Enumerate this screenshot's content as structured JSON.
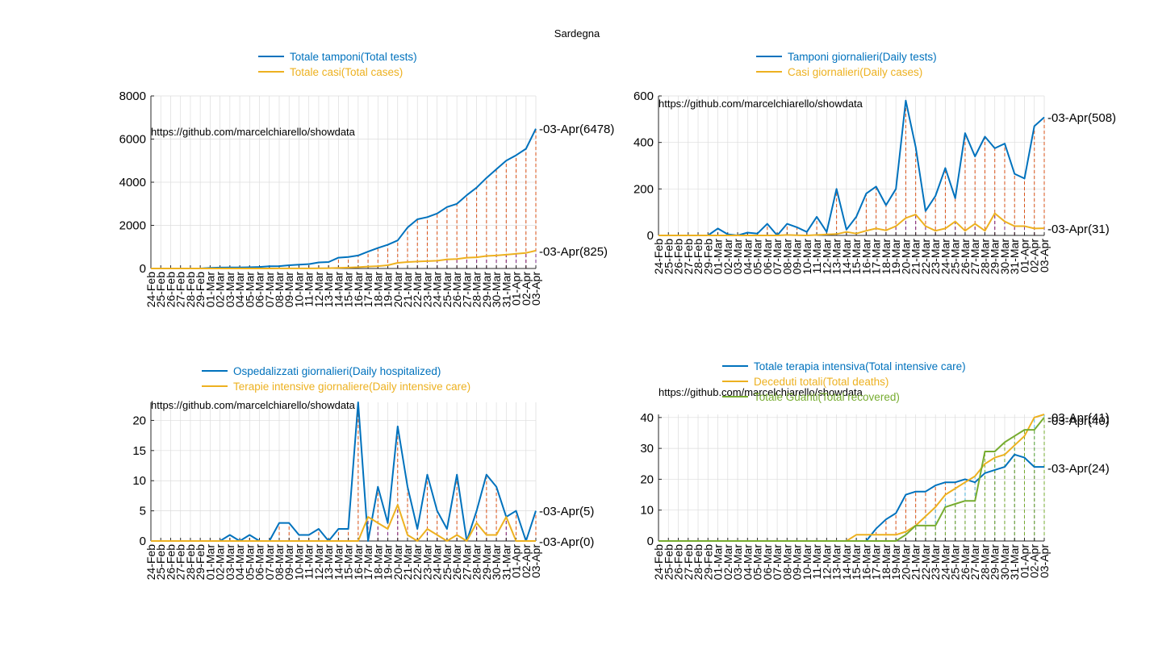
{
  "page": {
    "title": "Sardegna"
  },
  "colors": {
    "blue": "#0072BD",
    "orange": "#EDB120",
    "green": "#77AC30",
    "red": "#D95319",
    "purple": "#7E2F8E",
    "cyan": "#4DBEEE",
    "grid": "#dcdcdc",
    "axis": "#262626"
  },
  "chart_data": [
    {
      "type": "line",
      "categories": [
        "24-Feb",
        "25-Feb",
        "26-Feb",
        "27-Feb",
        "28-Feb",
        "29-Feb",
        "01-Mar",
        "02-Mar",
        "03-Mar",
        "04-Mar",
        "05-Mar",
        "06-Mar",
        "07-Mar",
        "08-Mar",
        "09-Mar",
        "10-Mar",
        "11-Mar",
        "12-Mar",
        "13-Mar",
        "14-Mar",
        "15-Mar",
        "16-Mar",
        "17-Mar",
        "18-Mar",
        "19-Mar",
        "20-Mar",
        "21-Mar",
        "22-Mar",
        "23-Mar",
        "24-Mar",
        "25-Mar",
        "26-Mar",
        "27-Mar",
        "28-Mar",
        "29-Mar",
        "30-Mar",
        "31-Mar",
        "01-Apr",
        "02-Apr",
        "03-Apr"
      ],
      "ylim": [
        0,
        8000
      ],
      "yticks": [
        "0",
        "2000",
        "4000",
        "6000",
        "8000"
      ],
      "grid": true,
      "watermark": "https://github.com/marcelchiarello/showdata",
      "series": [
        {
          "name": "Totale tamponi(Total tests)",
          "color": "#0072BD",
          "values": [
            0,
            0,
            0,
            0,
            0,
            0,
            30,
            40,
            45,
            50,
            55,
            70,
            100,
            110,
            150,
            180,
            200,
            280,
            300,
            500,
            530,
            600,
            780,
            950,
            1100,
            1300,
            1900,
            2280,
            2380,
            2550,
            2850,
            3000,
            3400,
            3750,
            4200,
            4600,
            5000,
            5250,
            5550,
            6478
          ]
        },
        {
          "name": "Totale casi(Total cases)",
          "color": "#EDB120",
          "values": [
            0,
            0,
            0,
            0,
            0,
            0,
            0,
            0,
            0,
            0,
            0,
            0,
            0,
            2,
            3,
            3,
            5,
            9,
            15,
            30,
            40,
            60,
            90,
            110,
            150,
            260,
            300,
            320,
            340,
            360,
            420,
            440,
            500,
            520,
            580,
            600,
            640,
            680,
            720,
            825
          ]
        }
      ],
      "annotations": [
        "03-Apr(6478)",
        "03-Apr(825)"
      ]
    },
    {
      "type": "line",
      "categories": [
        "24-Feb",
        "25-Feb",
        "26-Feb",
        "27-Feb",
        "28-Feb",
        "29-Feb",
        "01-Mar",
        "02-Mar",
        "03-Mar",
        "04-Mar",
        "05-Mar",
        "06-Mar",
        "07-Mar",
        "08-Mar",
        "09-Mar",
        "10-Mar",
        "11-Mar",
        "12-Mar",
        "13-Mar",
        "14-Mar",
        "15-Mar",
        "16-Mar",
        "17-Mar",
        "18-Mar",
        "19-Mar",
        "20-Mar",
        "21-Mar",
        "22-Mar",
        "23-Mar",
        "24-Mar",
        "25-Mar",
        "26-Mar",
        "27-Mar",
        "28-Mar",
        "29-Mar",
        "30-Mar",
        "31-Mar",
        "01-Apr",
        "02-Apr",
        "03-Apr"
      ],
      "ylim": [
        0,
        600
      ],
      "yticks": [
        "0",
        "200",
        "400",
        "600"
      ],
      "grid": true,
      "watermark": "https://github.com/marcelchiarello/showdata",
      "series": [
        {
          "name": "Tamponi giornalieri(Daily tests)",
          "color": "#0072BD",
          "values": [
            0,
            0,
            0,
            0,
            0,
            0,
            30,
            5,
            0,
            12,
            8,
            50,
            0,
            50,
            35,
            15,
            80,
            15,
            200,
            25,
            80,
            180,
            210,
            130,
            200,
            580,
            380,
            105,
            170,
            290,
            160,
            440,
            340,
            425,
            375,
            395,
            265,
            245,
            470,
            508
          ]
        },
        {
          "name": "Casi giornalieri(Daily cases)",
          "color": "#EDB120",
          "values": [
            0,
            0,
            0,
            0,
            0,
            0,
            0,
            0,
            0,
            0,
            0,
            0,
            0,
            2,
            1,
            0,
            2,
            4,
            6,
            15,
            8,
            20,
            30,
            22,
            40,
            75,
            90,
            40,
            20,
            30,
            60,
            20,
            50,
            20,
            95,
            60,
            40,
            40,
            30,
            31
          ]
        }
      ],
      "annotations": [
        "03-Apr(508)",
        "03-Apr(31)"
      ]
    },
    {
      "type": "line",
      "categories": [
        "24-Feb",
        "25-Feb",
        "26-Feb",
        "27-Feb",
        "28-Feb",
        "29-Feb",
        "01-Mar",
        "02-Mar",
        "03-Mar",
        "04-Mar",
        "05-Mar",
        "06-Mar",
        "07-Mar",
        "08-Mar",
        "09-Mar",
        "10-Mar",
        "11-Mar",
        "12-Mar",
        "13-Mar",
        "14-Mar",
        "15-Mar",
        "16-Mar",
        "17-Mar",
        "18-Mar",
        "19-Mar",
        "20-Mar",
        "21-Mar",
        "22-Mar",
        "23-Mar",
        "24-Mar",
        "25-Mar",
        "26-Mar",
        "27-Mar",
        "28-Mar",
        "29-Mar",
        "30-Mar",
        "31-Mar",
        "01-Apr",
        "02-Apr",
        "03-Apr"
      ],
      "ylim": [
        0,
        23
      ],
      "yticks": [
        "0",
        "5",
        "10",
        "15",
        "20"
      ],
      "grid": true,
      "watermark": "https://github.com/marcelchiarello/showdata",
      "series": [
        {
          "name": "Ospedalizzati giornalieri(Daily hospitalized)",
          "color": "#0072BD",
          "values": [
            0,
            0,
            0,
            0,
            0,
            0,
            0,
            0,
            1,
            0,
            1,
            0,
            0,
            3,
            3,
            1,
            1,
            2,
            0,
            2,
            2,
            23,
            0,
            9,
            3,
            19,
            9,
            2,
            11,
            5,
            2,
            11,
            0,
            5,
            11,
            9,
            4,
            5,
            0,
            5
          ]
        },
        {
          "name": "Terapie intensive giornaliere(Daily intensive care)",
          "color": "#EDB120",
          "values": [
            0,
            0,
            0,
            0,
            0,
            0,
            0,
            0,
            0,
            0,
            0,
            0,
            0,
            0,
            0,
            0,
            0,
            0,
            0,
            0,
            0,
            0,
            4,
            3,
            2,
            6,
            1,
            0,
            2,
            1,
            0,
            1,
            0,
            3,
            1,
            1,
            4,
            0,
            0,
            0
          ]
        }
      ],
      "annotations": [
        "03-Apr(5)",
        "03-Apr(0)"
      ]
    },
    {
      "type": "line",
      "categories": [
        "24-Feb",
        "25-Feb",
        "26-Feb",
        "27-Feb",
        "28-Feb",
        "29-Feb",
        "01-Mar",
        "02-Mar",
        "03-Mar",
        "04-Mar",
        "05-Mar",
        "06-Mar",
        "07-Mar",
        "08-Mar",
        "09-Mar",
        "10-Mar",
        "11-Mar",
        "12-Mar",
        "13-Mar",
        "14-Mar",
        "15-Mar",
        "16-Mar",
        "17-Mar",
        "18-Mar",
        "19-Mar",
        "20-Mar",
        "21-Mar",
        "22-Mar",
        "23-Mar",
        "24-Mar",
        "25-Mar",
        "26-Mar",
        "27-Mar",
        "28-Mar",
        "29-Mar",
        "30-Mar",
        "31-Mar",
        "01-Apr",
        "02-Apr",
        "03-Apr"
      ],
      "ylim": [
        0,
        41
      ],
      "yticks": [
        "0",
        "10",
        "20",
        "30",
        "40"
      ],
      "grid": true,
      "watermark": "https://github.com/marcelchiarello/showdata",
      "series": [
        {
          "name": "Totale terapia intensiva(Total intensive care)",
          "color": "#0072BD",
          "values": [
            0,
            0,
            0,
            0,
            0,
            0,
            0,
            0,
            0,
            0,
            0,
            0,
            0,
            0,
            0,
            0,
            0,
            0,
            0,
            0,
            0,
            0,
            4,
            7,
            9,
            15,
            16,
            16,
            18,
            19,
            19,
            20,
            19,
            22,
            23,
            24,
            28,
            27,
            24,
            24
          ]
        },
        {
          "name": "Deceduti totali(Total deaths)",
          "color": "#EDB120",
          "values": [
            0,
            0,
            0,
            0,
            0,
            0,
            0,
            0,
            0,
            0,
            0,
            0,
            0,
            0,
            0,
            0,
            0,
            0,
            0,
            0,
            2,
            2,
            2,
            2,
            2,
            3,
            5,
            8,
            11,
            15,
            17,
            19,
            21,
            25,
            27,
            28,
            31,
            34,
            40,
            41
          ]
        },
        {
          "name": "Totale Guariti(Total recovered)",
          "color": "#77AC30",
          "values": [
            0,
            0,
            0,
            0,
            0,
            0,
            0,
            0,
            0,
            0,
            0,
            0,
            0,
            0,
            0,
            0,
            0,
            0,
            0,
            0,
            0,
            0,
            0,
            0,
            0,
            2,
            5,
            5,
            5,
            11,
            12,
            13,
            13,
            29,
            29,
            32,
            34,
            36,
            36,
            40
          ]
        }
      ],
      "annotations": [
        "03-Apr(41)",
        "03-Apr(40)",
        "03-Apr(24)"
      ]
    }
  ]
}
